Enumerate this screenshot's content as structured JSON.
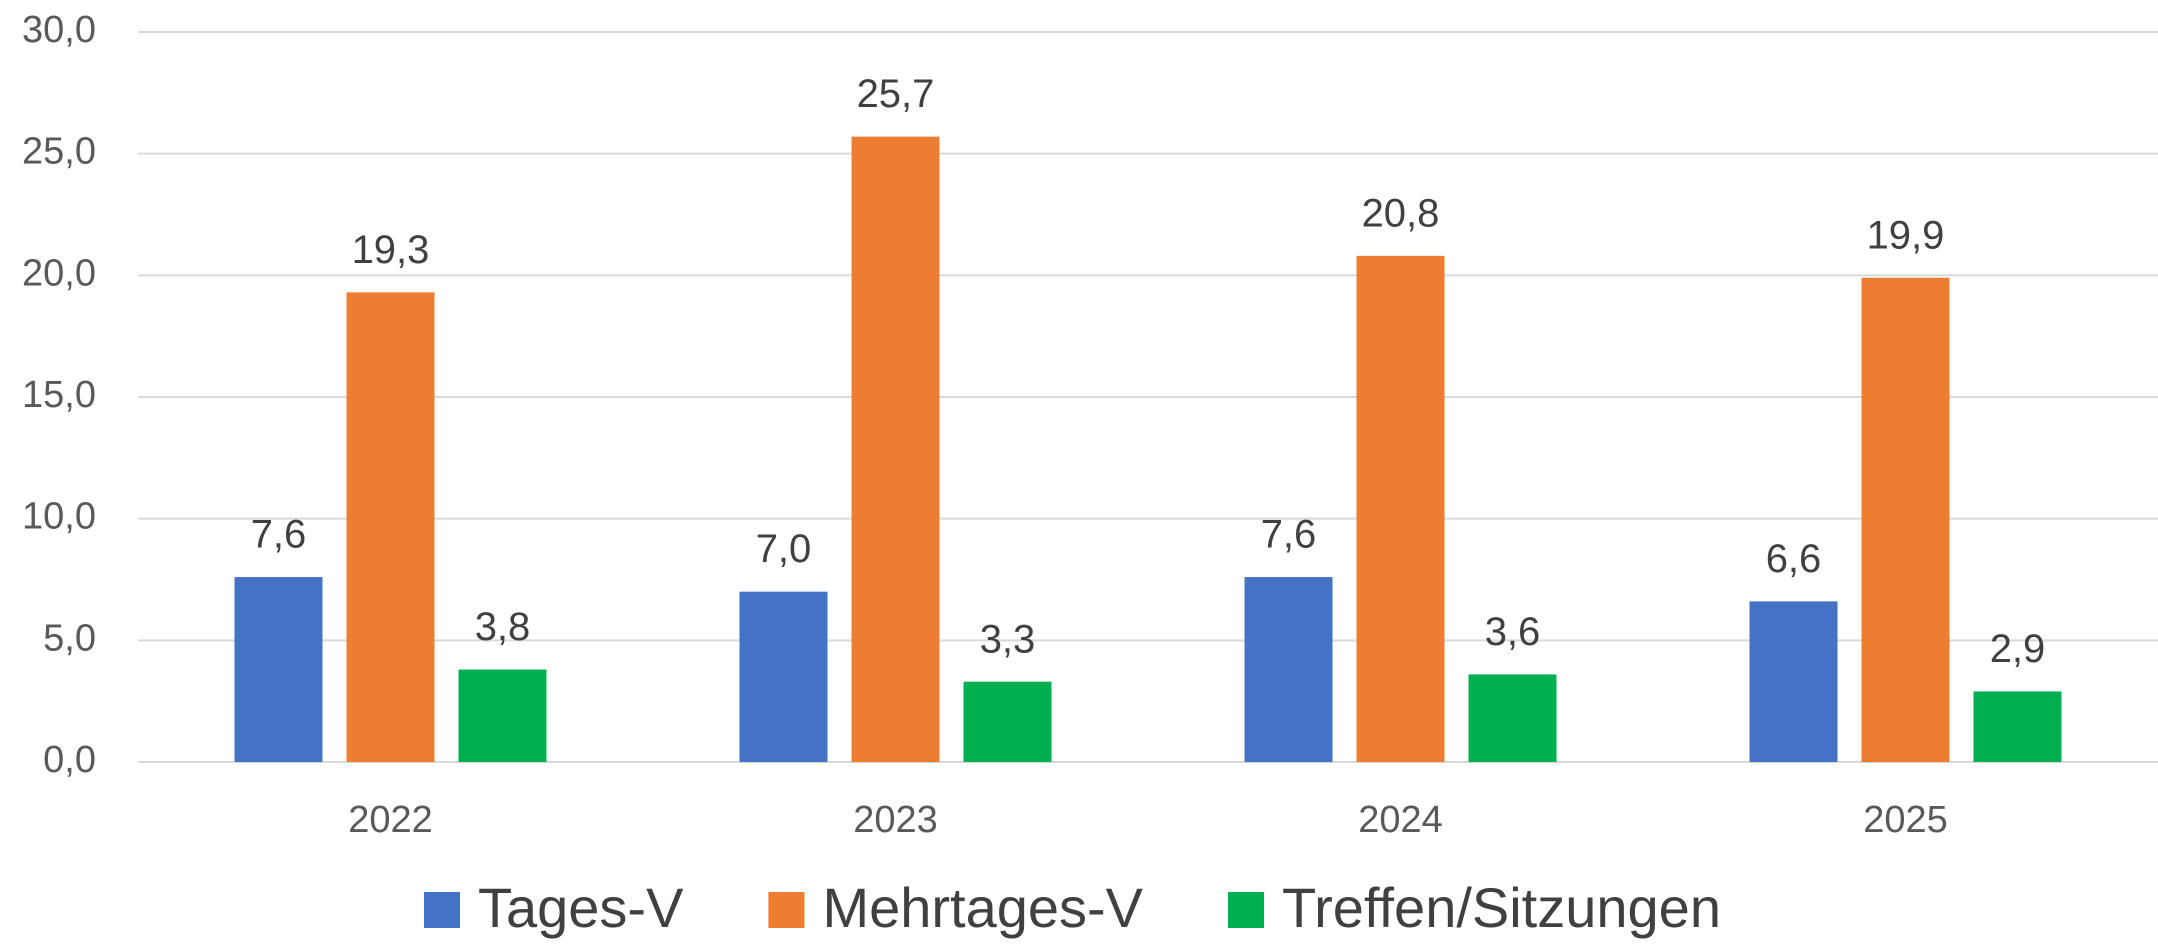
{
  "chart_data": {
    "type": "bar",
    "categories": [
      "2022",
      "2023",
      "2024",
      "2025"
    ],
    "series": [
      {
        "name": "Tages-V",
        "color": "#4472c4",
        "values": [
          7.6,
          7.0,
          7.6,
          6.6
        ],
        "value_labels": [
          "7,6",
          "7,0",
          "7,6",
          "6,6"
        ]
      },
      {
        "name": "Mehrtages-V",
        "color": "#ed7d31",
        "values": [
          19.3,
          25.7,
          20.8,
          19.9
        ],
        "value_labels": [
          "19,3",
          "25,7",
          "20,8",
          "19,9"
        ]
      },
      {
        "name": "Treffen/Sitzungen",
        "color": "#00b050",
        "values": [
          3.8,
          3.3,
          3.6,
          2.9
        ],
        "value_labels": [
          "3,8",
          "3,3",
          "3,6",
          "2,9"
        ]
      }
    ],
    "ylim": [
      0,
      30
    ],
    "yticks": [
      {
        "value": 0,
        "label": "0,0"
      },
      {
        "value": 5,
        "label": "5,0"
      },
      {
        "value": 10,
        "label": "10,0"
      },
      {
        "value": 15,
        "label": "15,0"
      },
      {
        "value": 20,
        "label": "20,0"
      },
      {
        "value": 25,
        "label": "25,0"
      },
      {
        "value": 30,
        "label": "30,0"
      }
    ],
    "grid": true,
    "legend": "bottom"
  }
}
